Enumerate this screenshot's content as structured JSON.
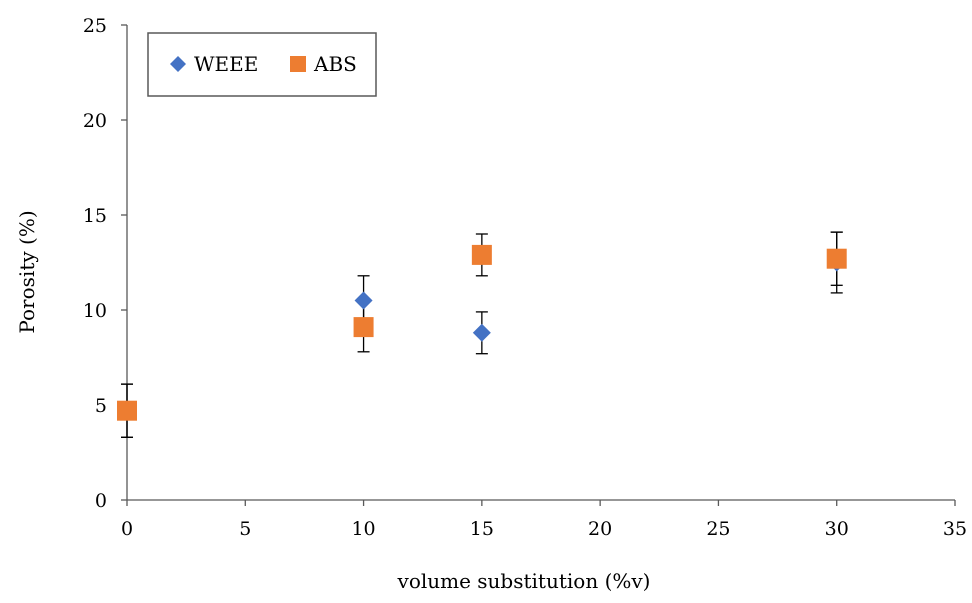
{
  "chart_data": {
    "type": "scatter",
    "title": "",
    "xlabel": "volume substitution (%v)",
    "ylabel": "Porosity (%)",
    "xlim": [
      0,
      35
    ],
    "ylim": [
      0,
      25
    ],
    "xticks": [
      "0",
      "5",
      "10",
      "15",
      "20",
      "25",
      "30",
      "35"
    ],
    "yticks": [
      "0",
      "5",
      "10",
      "15",
      "20",
      "25"
    ],
    "grid": false,
    "legend_position": "top-left",
    "series": [
      {
        "name": "WEEE",
        "marker": "diamond",
        "color": "#4472C4",
        "points": [
          {
            "x": 0,
            "y": 4.7,
            "err": 1.4
          },
          {
            "x": 10,
            "y": 10.5,
            "err": 1.3
          },
          {
            "x": 15,
            "y": 8.8,
            "err": 1.1
          },
          {
            "x": 30,
            "y": 12.5,
            "err": 1.6
          }
        ]
      },
      {
        "name": "ABS",
        "marker": "square",
        "color": "#ED7D31",
        "points": [
          {
            "x": 0,
            "y": 4.7,
            "err": 1.4
          },
          {
            "x": 10,
            "y": 9.1,
            "err": 1.3
          },
          {
            "x": 15,
            "y": 12.9,
            "err": 1.1
          },
          {
            "x": 30,
            "y": 12.7,
            "err": 1.4
          }
        ]
      }
    ]
  }
}
